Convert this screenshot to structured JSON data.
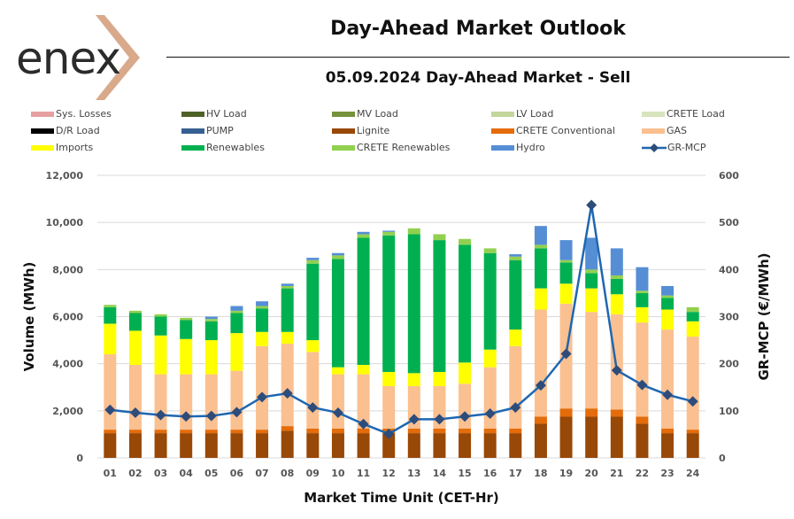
{
  "header": {
    "logo_text": "enex",
    "title": "Day-Ahead Market Outlook",
    "subtitle": "05.09.2024  Day-Ahead Market - Sell"
  },
  "chart_data": {
    "type": "bar",
    "stacked": true,
    "title": "05.09.2024  Day-Ahead Market - Sell",
    "xlabel": "Market Time Unit (CET-Hr)",
    "ylabel": "Volume (MWh)",
    "y2label": "GR-MCP (€/MWh)",
    "ylim": [
      0,
      12000
    ],
    "y2lim": [
      0,
      600
    ],
    "yticks": [
      "0",
      "2,000",
      "4,000",
      "6,000",
      "8,000",
      "10,000",
      "12,000"
    ],
    "y2ticks": [
      "0",
      "100",
      "200",
      "300",
      "400",
      "500",
      "600"
    ],
    "grid": true,
    "legend_position": "top",
    "categories": [
      "01",
      "02",
      "03",
      "04",
      "05",
      "06",
      "07",
      "08",
      "09",
      "10",
      "11",
      "12",
      "13",
      "14",
      "15",
      "16",
      "17",
      "18",
      "19",
      "20",
      "21",
      "22",
      "23",
      "24"
    ],
    "legend": [
      {
        "name": "Sys. Losses",
        "color": "#e6a0a0",
        "kind": "bar"
      },
      {
        "name": "HV Load",
        "color": "#4e6228",
        "kind": "bar"
      },
      {
        "name": "MV Load",
        "color": "#76923c",
        "kind": "bar"
      },
      {
        "name": "LV Load",
        "color": "#c3d69b",
        "kind": "bar"
      },
      {
        "name": "CRETE Load",
        "color": "#d7e4bd",
        "kind": "bar"
      },
      {
        "name": "D/R Load",
        "color": "#000000",
        "kind": "bar"
      },
      {
        "name": "PUMP",
        "color": "#376092",
        "kind": "bar"
      },
      {
        "name": "Lignite",
        "color": "#984807",
        "kind": "bar"
      },
      {
        "name": "CRETE Conventional",
        "color": "#e46c0a",
        "kind": "bar"
      },
      {
        "name": "GAS",
        "color": "#fac090",
        "kind": "bar"
      },
      {
        "name": "Imports",
        "color": "#ffff00",
        "kind": "bar"
      },
      {
        "name": "Renewables",
        "color": "#00b050",
        "kind": "bar"
      },
      {
        "name": "CRETE Renewables",
        "color": "#92d050",
        "kind": "bar"
      },
      {
        "name": "Hydro",
        "color": "#558ed5",
        "kind": "bar"
      },
      {
        "name": "GR-MCP",
        "color": "#1f67b1",
        "kind": "line"
      }
    ],
    "series": [
      {
        "name": "Lignite",
        "color": "#984807",
        "values": [
          1050,
          1050,
          1050,
          1050,
          1050,
          1050,
          1050,
          1150,
          1050,
          1050,
          1050,
          1050,
          1050,
          1050,
          1050,
          1050,
          1050,
          1450,
          1750,
          1750,
          1750,
          1450,
          1050,
          1050
        ]
      },
      {
        "name": "CRETE Conventional",
        "color": "#e46c0a",
        "values": [
          150,
          150,
          150,
          150,
          150,
          150,
          150,
          200,
          200,
          200,
          200,
          200,
          200,
          200,
          200,
          200,
          200,
          300,
          350,
          350,
          300,
          300,
          200,
          150
        ]
      },
      {
        "name": "GAS",
        "color": "#fac090",
        "values": [
          3200,
          2750,
          2350,
          2350,
          2350,
          2500,
          3550,
          3500,
          3250,
          2300,
          2300,
          1800,
          1800,
          1800,
          1900,
          2600,
          3500,
          4550,
          4450,
          4100,
          4050,
          4000,
          4200,
          3950
        ]
      },
      {
        "name": "Imports",
        "color": "#ffff00",
        "values": [
          1300,
          1450,
          1650,
          1500,
          1450,
          1600,
          600,
          500,
          500,
          300,
          400,
          600,
          550,
          600,
          900,
          750,
          700,
          900,
          850,
          1000,
          850,
          650,
          850,
          650
        ]
      },
      {
        "name": "Renewables",
        "color": "#00b050",
        "values": [
          700,
          750,
          800,
          800,
          800,
          850,
          1000,
          1850,
          3250,
          4600,
          5400,
          5800,
          5900,
          5600,
          5000,
          4100,
          2950,
          1700,
          900,
          650,
          650,
          600,
          500,
          400
        ]
      },
      {
        "name": "CRETE Renewables",
        "color": "#92d050",
        "values": [
          100,
          100,
          100,
          100,
          100,
          100,
          100,
          100,
          150,
          150,
          150,
          150,
          250,
          250,
          250,
          200,
          150,
          150,
          100,
          150,
          150,
          100,
          100,
          200
        ]
      },
      {
        "name": "Hydro",
        "color": "#558ed5",
        "values": [
          0,
          0,
          0,
          0,
          100,
          200,
          200,
          100,
          100,
          100,
          100,
          50,
          0,
          0,
          0,
          0,
          100,
          800,
          850,
          1350,
          1150,
          1000,
          400,
          0
        ]
      }
    ],
    "line_series": {
      "name": "GR-MCP",
      "axis": "right",
      "color": "#1f67b1",
      "marker_color": "#2e4c7a",
      "values": [
        102,
        96,
        91,
        88,
        89,
        97,
        129,
        137,
        107,
        96,
        72,
        51,
        82,
        82,
        88,
        94,
        107,
        154,
        221,
        537,
        186,
        155,
        134,
        120
      ]
    }
  }
}
